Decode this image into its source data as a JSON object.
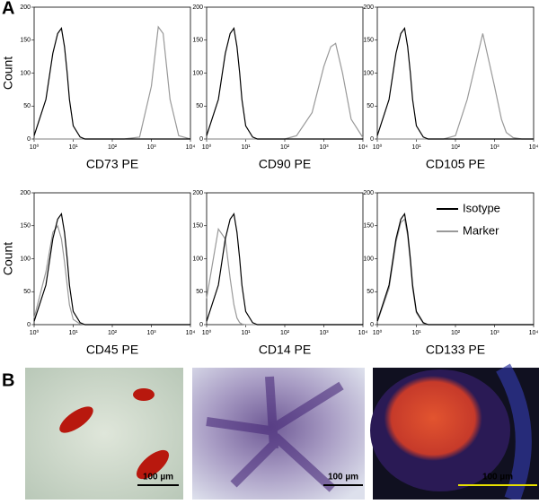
{
  "panel_labels": [
    "A",
    "B"
  ],
  "chart_data": [
    {
      "type": "line",
      "xlabel": "CD73 PE",
      "ylabel": "Count",
      "log_x": true,
      "x": [
        1,
        2,
        3,
        4,
        5,
        6,
        7,
        8,
        10,
        15,
        20,
        50,
        100,
        200,
        500,
        1000,
        1500,
        2000,
        3000,
        5000,
        10000
      ],
      "series": [
        {
          "name": "Isotype",
          "color": "#000000",
          "values": [
            5,
            60,
            130,
            160,
            168,
            140,
            100,
            60,
            20,
            3,
            0,
            0,
            0,
            0,
            0,
            0,
            0,
            0,
            0,
            0,
            0
          ]
        },
        {
          "name": "Marker",
          "color": "#999999",
          "values": [
            0,
            0,
            0,
            0,
            0,
            0,
            0,
            0,
            0,
            0,
            0,
            0,
            0,
            0,
            3,
            80,
            170,
            160,
            60,
            5,
            0
          ]
        }
      ],
      "xlim": [
        1,
        10000
      ],
      "xticks": [
        {
          "value": 1,
          "label": "10⁰"
        },
        {
          "value": 10,
          "label": "10¹"
        },
        {
          "value": 100,
          "label": "10²"
        },
        {
          "value": 1000,
          "label": "10³"
        },
        {
          "value": 10000,
          "label": "10⁴"
        }
      ],
      "ylim": [
        0,
        200
      ],
      "yticks": [
        0,
        50,
        100,
        150,
        200
      ]
    },
    {
      "type": "line",
      "xlabel": "CD90 PE",
      "log_x": true,
      "x": [
        1,
        2,
        3,
        4,
        5,
        6,
        7,
        8,
        10,
        15,
        20,
        50,
        100,
        200,
        500,
        1000,
        1500,
        2000,
        3000,
        5000,
        10000
      ],
      "series": [
        {
          "name": "Isotype",
          "color": "#000000",
          "values": [
            5,
            60,
            130,
            160,
            168,
            140,
            100,
            60,
            20,
            3,
            0,
            0,
            0,
            0,
            0,
            0,
            0,
            0,
            0,
            0,
            0
          ]
        },
        {
          "name": "Marker",
          "color": "#999999",
          "values": [
            0,
            0,
            0,
            0,
            0,
            0,
            0,
            0,
            0,
            0,
            0,
            0,
            0,
            5,
            40,
            110,
            140,
            145,
            100,
            30,
            2
          ]
        }
      ],
      "xlim": [
        1,
        10000
      ],
      "xticks": [
        {
          "value": 1,
          "label": "10⁰"
        },
        {
          "value": 10,
          "label": "10¹"
        },
        {
          "value": 100,
          "label": "10²"
        },
        {
          "value": 1000,
          "label": "10³"
        },
        {
          "value": 10000,
          "label": "10⁴"
        }
      ],
      "ylim": [
        0,
        200
      ],
      "yticks": [
        0,
        50,
        100,
        150,
        200
      ]
    },
    {
      "type": "line",
      "xlabel": "CD105 PE",
      "log_x": true,
      "x": [
        1,
        2,
        3,
        4,
        5,
        6,
        7,
        8,
        10,
        15,
        20,
        50,
        100,
        200,
        500,
        1000,
        1500,
        2000,
        3000,
        5000,
        10000
      ],
      "series": [
        {
          "name": "Isotype",
          "color": "#000000",
          "values": [
            5,
            60,
            130,
            160,
            168,
            140,
            100,
            60,
            20,
            3,
            0,
            0,
            0,
            0,
            0,
            0,
            0,
            0,
            0,
            0,
            0
          ]
        },
        {
          "name": "Marker",
          "color": "#999999",
          "values": [
            0,
            0,
            0,
            0,
            0,
            0,
            0,
            0,
            0,
            0,
            0,
            0,
            5,
            60,
            160,
            80,
            30,
            10,
            2,
            0,
            0
          ]
        }
      ],
      "xlim": [
        1,
        10000
      ],
      "xticks": [
        {
          "value": 1,
          "label": "10⁰"
        },
        {
          "value": 10,
          "label": "10¹"
        },
        {
          "value": 100,
          "label": "10²"
        },
        {
          "value": 1000,
          "label": "10³"
        },
        {
          "value": 10000,
          "label": "10⁴"
        }
      ],
      "ylim": [
        0,
        200
      ],
      "yticks": [
        0,
        50,
        100,
        150,
        200
      ]
    },
    {
      "type": "line",
      "xlabel": "CD45 PE",
      "ylabel": "Count",
      "log_x": true,
      "x": [
        1,
        2,
        3,
        4,
        5,
        6,
        7,
        8,
        10,
        15,
        20,
        50,
        100,
        200,
        500,
        1000,
        1500,
        2000,
        3000,
        5000,
        10000
      ],
      "series": [
        {
          "name": "Isotype",
          "color": "#000000",
          "values": [
            5,
            60,
            130,
            160,
            168,
            140,
            100,
            60,
            20,
            3,
            0,
            0,
            0,
            0,
            0,
            0,
            0,
            0,
            0,
            0,
            0
          ]
        },
        {
          "name": "Marker",
          "color": "#999999",
          "values": [
            10,
            80,
            140,
            150,
            130,
            95,
            60,
            30,
            8,
            1,
            0,
            0,
            0,
            0,
            0,
            0,
            0,
            0,
            0,
            0,
            0
          ]
        }
      ],
      "xlim": [
        1,
        10000
      ],
      "xticks": [
        {
          "value": 1,
          "label": "10⁰"
        },
        {
          "value": 10,
          "label": "10¹"
        },
        {
          "value": 100,
          "label": "10²"
        },
        {
          "value": 1000,
          "label": "10³"
        },
        {
          "value": 10000,
          "label": "10⁴"
        }
      ],
      "ylim": [
        0,
        200
      ],
      "yticks": [
        0,
        50,
        100,
        150,
        200
      ]
    },
    {
      "type": "line",
      "xlabel": "CD14 PE",
      "log_x": true,
      "x": [
        1,
        2,
        3,
        4,
        5,
        6,
        7,
        8,
        10,
        15,
        20,
        50,
        100,
        200,
        500,
        1000,
        1500,
        2000,
        3000,
        5000,
        10000
      ],
      "series": [
        {
          "name": "Isotype",
          "color": "#000000",
          "values": [
            5,
            60,
            130,
            160,
            168,
            140,
            100,
            60,
            20,
            3,
            0,
            0,
            0,
            0,
            0,
            0,
            0,
            0,
            0,
            0,
            0
          ]
        },
        {
          "name": "Marker",
          "color": "#999999",
          "values": [
            40,
            145,
            130,
            70,
            30,
            10,
            3,
            1,
            0,
            0,
            0,
            0,
            0,
            0,
            0,
            0,
            0,
            0,
            0,
            0,
            0
          ]
        }
      ],
      "xlim": [
        1,
        10000
      ],
      "xticks": [
        {
          "value": 1,
          "label": "10⁰"
        },
        {
          "value": 10,
          "label": "10¹"
        },
        {
          "value": 100,
          "label": "10²"
        },
        {
          "value": 1000,
          "label": "10³"
        },
        {
          "value": 10000,
          "label": "10⁴"
        }
      ],
      "ylim": [
        0,
        200
      ],
      "yticks": [
        0,
        50,
        100,
        150,
        200
      ]
    },
    {
      "type": "line",
      "xlabel": "CD133 PE",
      "log_x": true,
      "legend": "upper right",
      "x": [
        1,
        2,
        3,
        4,
        5,
        6,
        7,
        8,
        10,
        15,
        20,
        50,
        100,
        200,
        500,
        1000,
        1500,
        2000,
        3000,
        5000,
        10000
      ],
      "series": [
        {
          "name": "Isotype",
          "color": "#000000",
          "values": [
            5,
            60,
            130,
            160,
            168,
            140,
            100,
            60,
            20,
            3,
            0,
            0,
            0,
            0,
            0,
            0,
            0,
            0,
            0,
            0,
            0
          ]
        },
        {
          "name": "Marker",
          "color": "#999999",
          "values": [
            4,
            55,
            125,
            155,
            160,
            135,
            95,
            55,
            18,
            2,
            0,
            0,
            0,
            0,
            0,
            0,
            0,
            0,
            0,
            0,
            0
          ]
        }
      ],
      "xlim": [
        1,
        10000
      ],
      "xticks": [
        {
          "value": 1,
          "label": "10⁰"
        },
        {
          "value": 10,
          "label": "10¹"
        },
        {
          "value": 100,
          "label": "10²"
        },
        {
          "value": 1000,
          "label": "10³"
        },
        {
          "value": 10000,
          "label": "10⁴"
        }
      ],
      "ylim": [
        0,
        200
      ],
      "yticks": [
        0,
        50,
        100,
        150,
        200
      ]
    }
  ],
  "images": [
    {
      "scale_bar": "100 µm"
    },
    {
      "scale_bar": "100 µm"
    },
    {
      "scale_bar": "100 µm"
    }
  ]
}
